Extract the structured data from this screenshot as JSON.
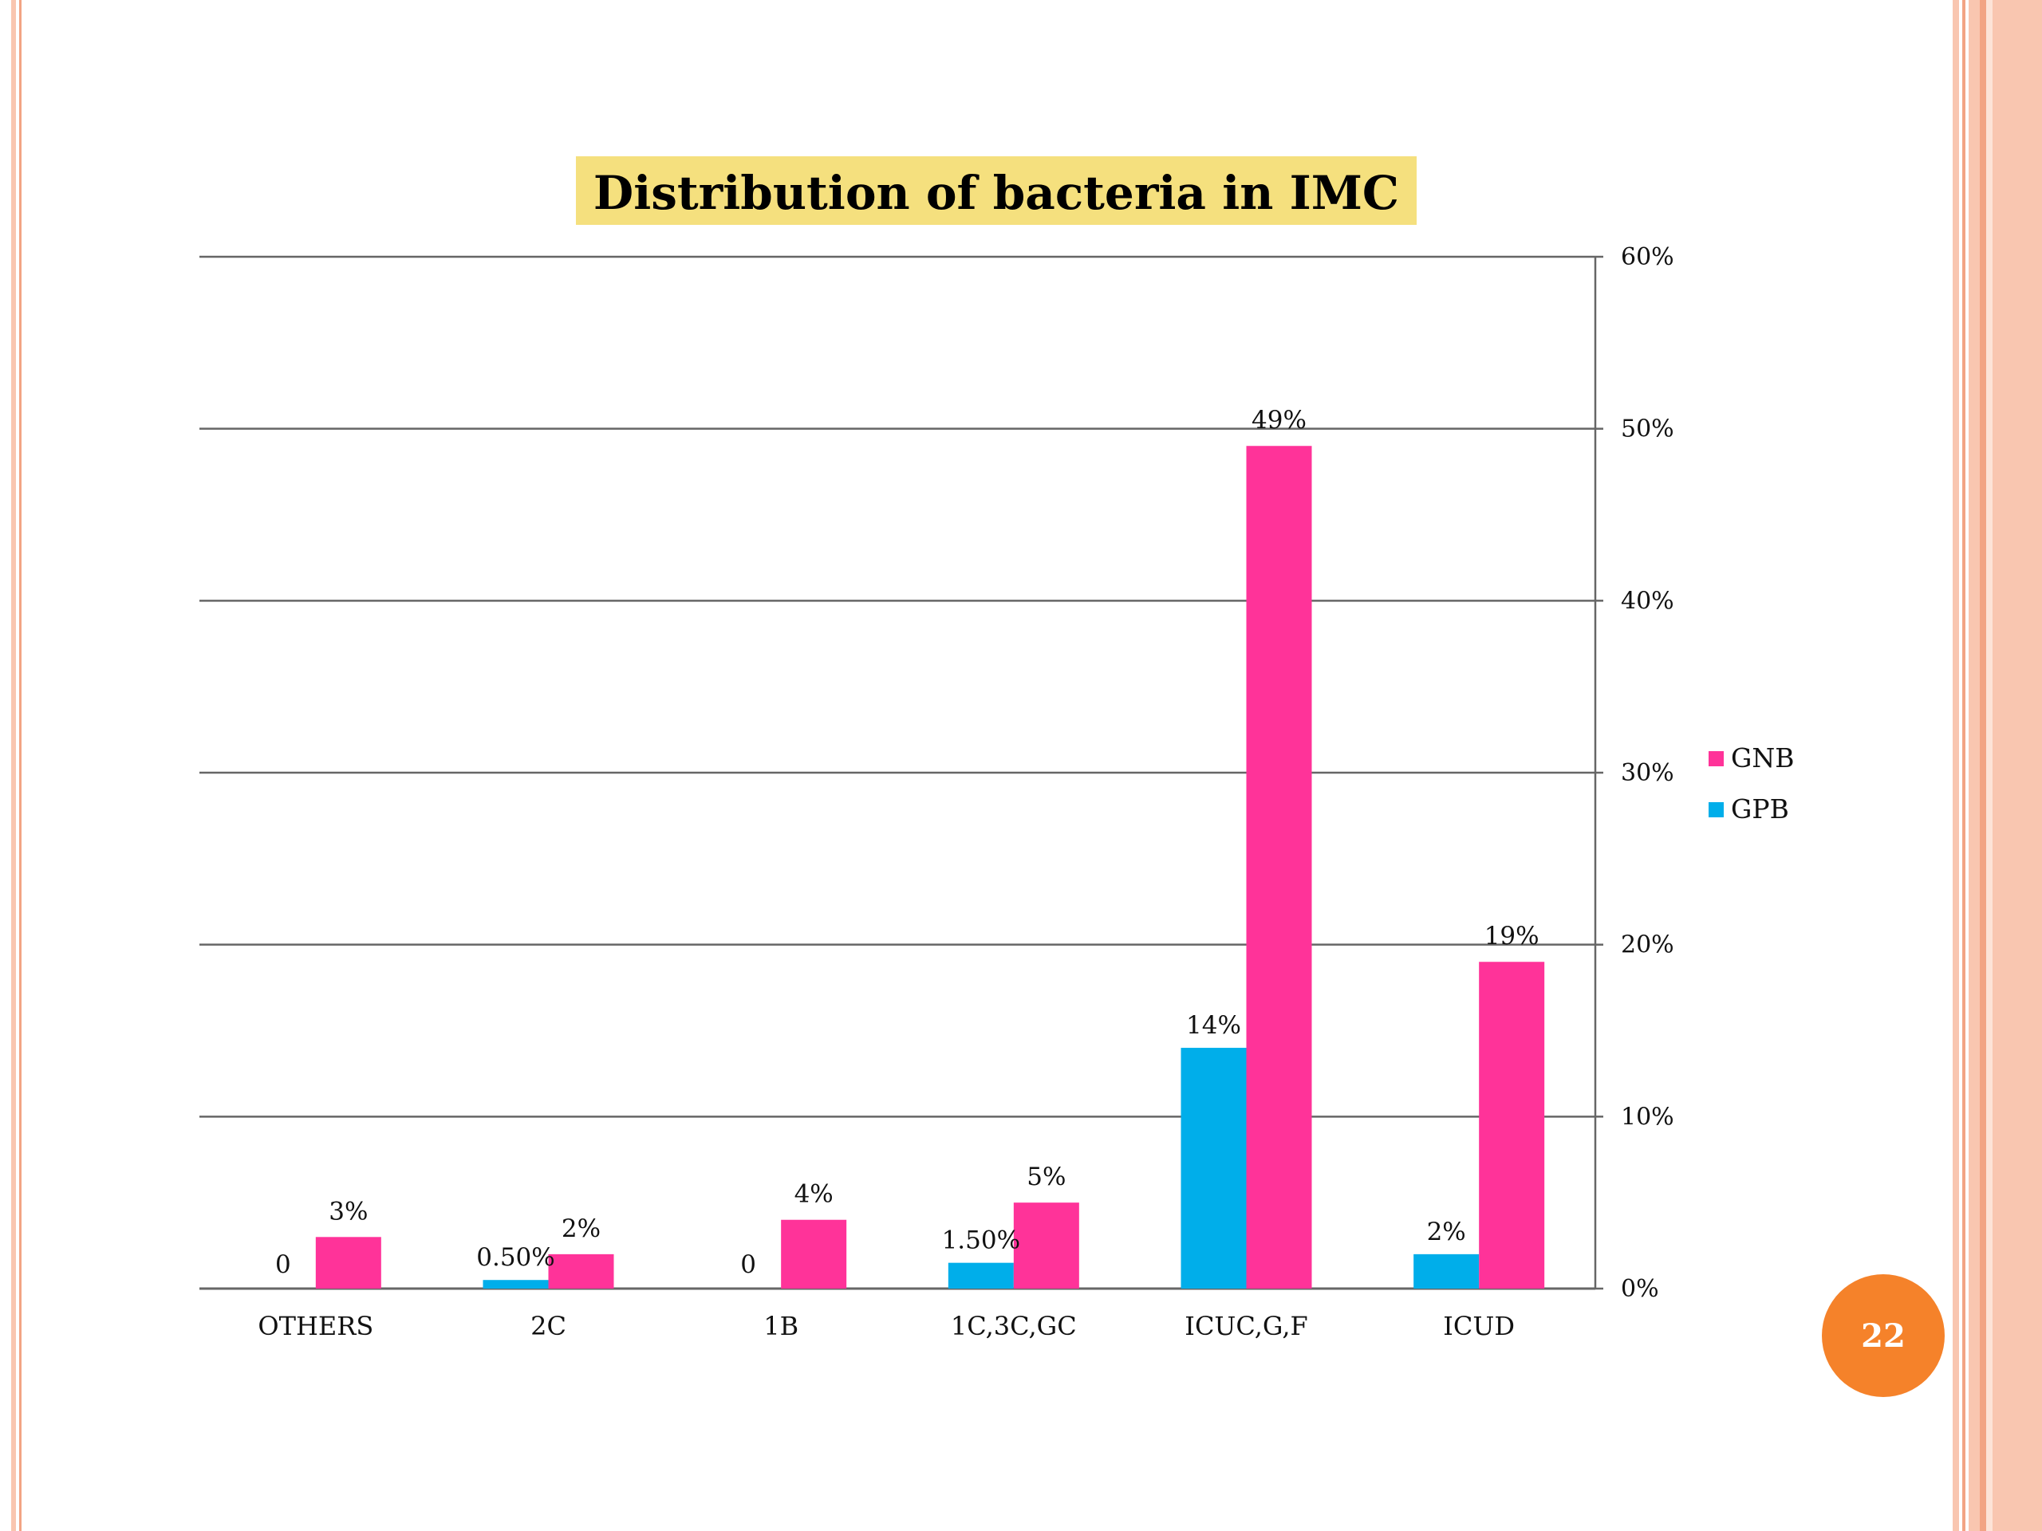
{
  "colors": {
    "gnb": "#ff3399",
    "gpb": "#00aeea",
    "title_highlight": "#f5e07e",
    "grid": "#666666",
    "page_badge": "#f5822a",
    "border_light": "#f9c6b0",
    "border_dark": "#f2a484"
  },
  "page_number": "22",
  "chart_data": {
    "type": "bar",
    "title": "Distribution of bacteria in IMC",
    "categories": [
      "OTHERS",
      "2C",
      "1B",
      "1C,3C,GC",
      "ICUC,G,F",
      "ICUD"
    ],
    "series": [
      {
        "name": "GPB",
        "color": "#00aeea",
        "values": [
          0,
          0.5,
          0,
          1.5,
          14,
          2
        ],
        "labels": [
          "0",
          "0.50%",
          "0",
          "1.50%",
          "14%",
          "2%"
        ]
      },
      {
        "name": "GNB",
        "color": "#ff3399",
        "values": [
          3,
          2,
          4,
          5,
          49,
          19
        ],
        "labels": [
          "3%",
          "2%",
          "4%",
          "5%",
          "49%",
          "19%"
        ]
      }
    ],
    "y_axis": {
      "position": "right",
      "min": 0,
      "max": 60,
      "ticks": [
        0,
        10,
        20,
        30,
        40,
        50,
        60
      ],
      "tick_labels": [
        "0%",
        "10%",
        "20%",
        "30%",
        "40%",
        "50%",
        "60%"
      ]
    },
    "grid": true,
    "legend": {
      "position": "right",
      "entries": [
        "GNB",
        "GPB"
      ]
    }
  }
}
